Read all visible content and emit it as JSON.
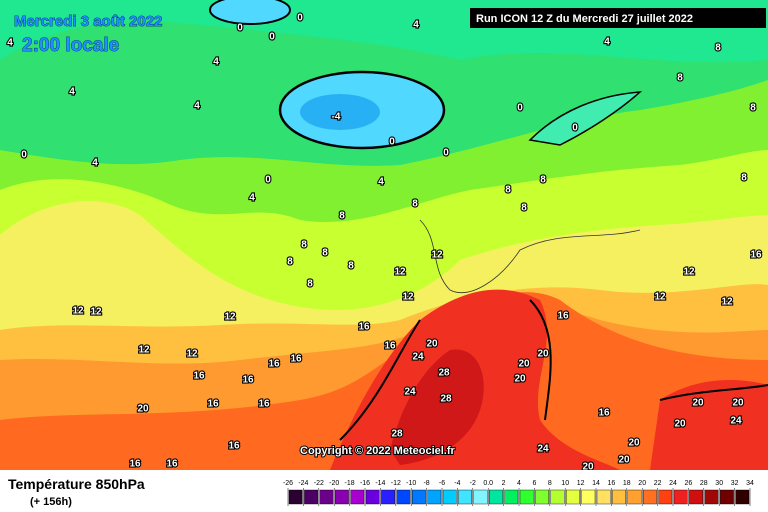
{
  "header": {
    "date": "Mercredi 3 août 2022",
    "time": "2:00 locale",
    "run": "Run ICON 12 Z du Mercredi 27 juillet 2022"
  },
  "copyright": "Copyright © 2022 Meteociel.fr",
  "footer": {
    "title": "Température 850hPa",
    "subtitle": "(+ 156h)"
  },
  "legend": {
    "ticks": [
      -26,
      -24,
      -22,
      -20,
      -18,
      -16,
      -14,
      -12,
      -10,
      -8,
      -6,
      -4,
      -2,
      {
        "value": 0,
        "label": "0.0"
      },
      2,
      4,
      6,
      8,
      10,
      12,
      14,
      16,
      18,
      20,
      22,
      24,
      26,
      28,
      30,
      32,
      34
    ],
    "colors": [
      "#2d0033",
      "#4b0063",
      "#6b0089",
      "#8a00b0",
      "#a800d0",
      "#6a00e0",
      "#2a20ff",
      "#0048ff",
      "#0078ff",
      "#00a4ff",
      "#00ccff",
      "#40e4ff",
      "#80f4ff",
      "#00e6a0",
      "#00f060",
      "#30ff30",
      "#80ff30",
      "#b4ff30",
      "#e4ff40",
      "#ffff60",
      "#ffe060",
      "#ffc040",
      "#ffa030",
      "#ff7020",
      "#ff4010",
      "#f02020",
      "#d01010",
      "#a00808",
      "#700000",
      "#300000"
    ]
  },
  "contour_labels": [
    0,
    0,
    0,
    4,
    4,
    8,
    4,
    4,
    4,
    -4,
    0,
    0,
    0,
    0,
    4,
    0,
    0,
    4,
    4,
    8,
    8,
    8,
    8,
    8,
    8,
    8,
    8,
    8,
    8,
    8,
    8,
    8,
    12,
    12,
    12,
    12,
    16,
    12,
    12,
    12,
    12,
    12,
    12,
    12,
    16,
    16,
    20,
    24,
    16,
    20,
    20,
    28,
    20,
    24,
    28,
    16,
    16,
    16,
    16,
    20,
    16,
    16,
    16,
    20,
    20,
    20,
    24,
    20,
    16,
    28,
    24,
    16,
    16,
    20,
    20,
    4
  ]
}
